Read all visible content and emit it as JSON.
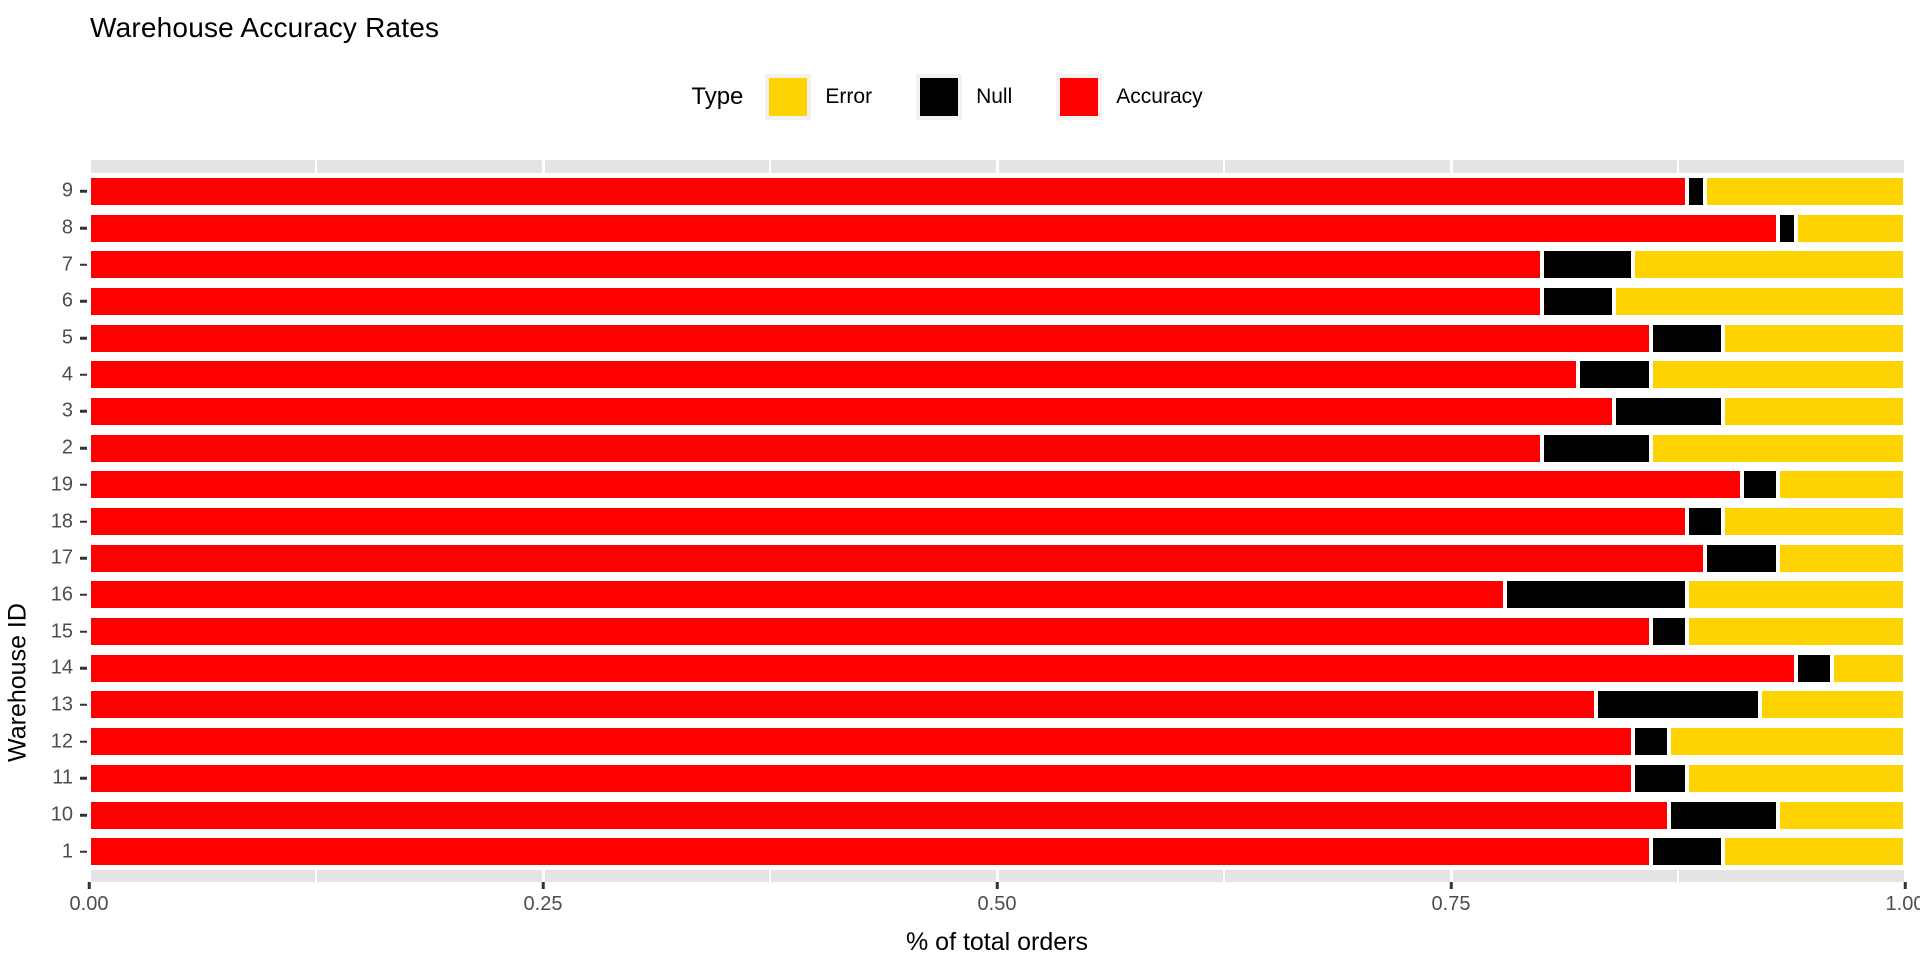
{
  "chart_data": {
    "type": "bar",
    "orientation": "horizontal",
    "stacked": true,
    "normalized": true,
    "title": "Warehouse Accuracy Rates",
    "xlabel": "% of total orders",
    "ylabel": "Warehouse ID",
    "xlim": [
      0,
      1
    ],
    "x_ticks": [
      {
        "value": 0.0,
        "label": "0.00"
      },
      {
        "value": 0.25,
        "label": "0.25"
      },
      {
        "value": 0.5,
        "label": "0.50"
      },
      {
        "value": 0.75,
        "label": "0.75"
      },
      {
        "value": 1.0,
        "label": "1.00"
      }
    ],
    "minor_grid_step": 0.125,
    "grid": true,
    "legend": {
      "title": "Type",
      "position": "top",
      "entries": [
        {
          "label": "Error",
          "color": "#FFD300"
        },
        {
          "label": "Null",
          "color": "#000000"
        },
        {
          "label": "Accuracy",
          "color": "#FF0000"
        }
      ]
    },
    "categories": [
      "9",
      "8",
      "7",
      "6",
      "5",
      "4",
      "3",
      "2",
      "19",
      "18",
      "17",
      "16",
      "15",
      "14",
      "13",
      "12",
      "11",
      "10",
      "1"
    ],
    "series": [
      {
        "name": "Accuracy",
        "color": "#FF0000",
        "values": [
          0.88,
          0.93,
          0.8,
          0.8,
          0.86,
          0.82,
          0.84,
          0.8,
          0.91,
          0.88,
          0.89,
          0.78,
          0.86,
          0.94,
          0.83,
          0.85,
          0.85,
          0.87,
          0.86
        ]
      },
      {
        "name": "Null",
        "color": "#000000",
        "values": [
          0.01,
          0.01,
          0.05,
          0.04,
          0.04,
          0.04,
          0.06,
          0.06,
          0.02,
          0.02,
          0.04,
          0.1,
          0.02,
          0.02,
          0.09,
          0.02,
          0.03,
          0.06,
          0.04
        ]
      },
      {
        "name": "Error",
        "color": "#FFD300",
        "values": [
          0.11,
          0.06,
          0.15,
          0.16,
          0.1,
          0.14,
          0.1,
          0.14,
          0.07,
          0.1,
          0.07,
          0.12,
          0.12,
          0.04,
          0.08,
          0.13,
          0.12,
          0.07,
          0.1
        ]
      }
    ],
    "colors": {
      "panel_strip": "#E4E4E4",
      "gridline": "#FFFFFF",
      "tick_label": "#4D4D4D",
      "axis_tick": "#333333",
      "bar_border": "#FFFFFF"
    }
  }
}
